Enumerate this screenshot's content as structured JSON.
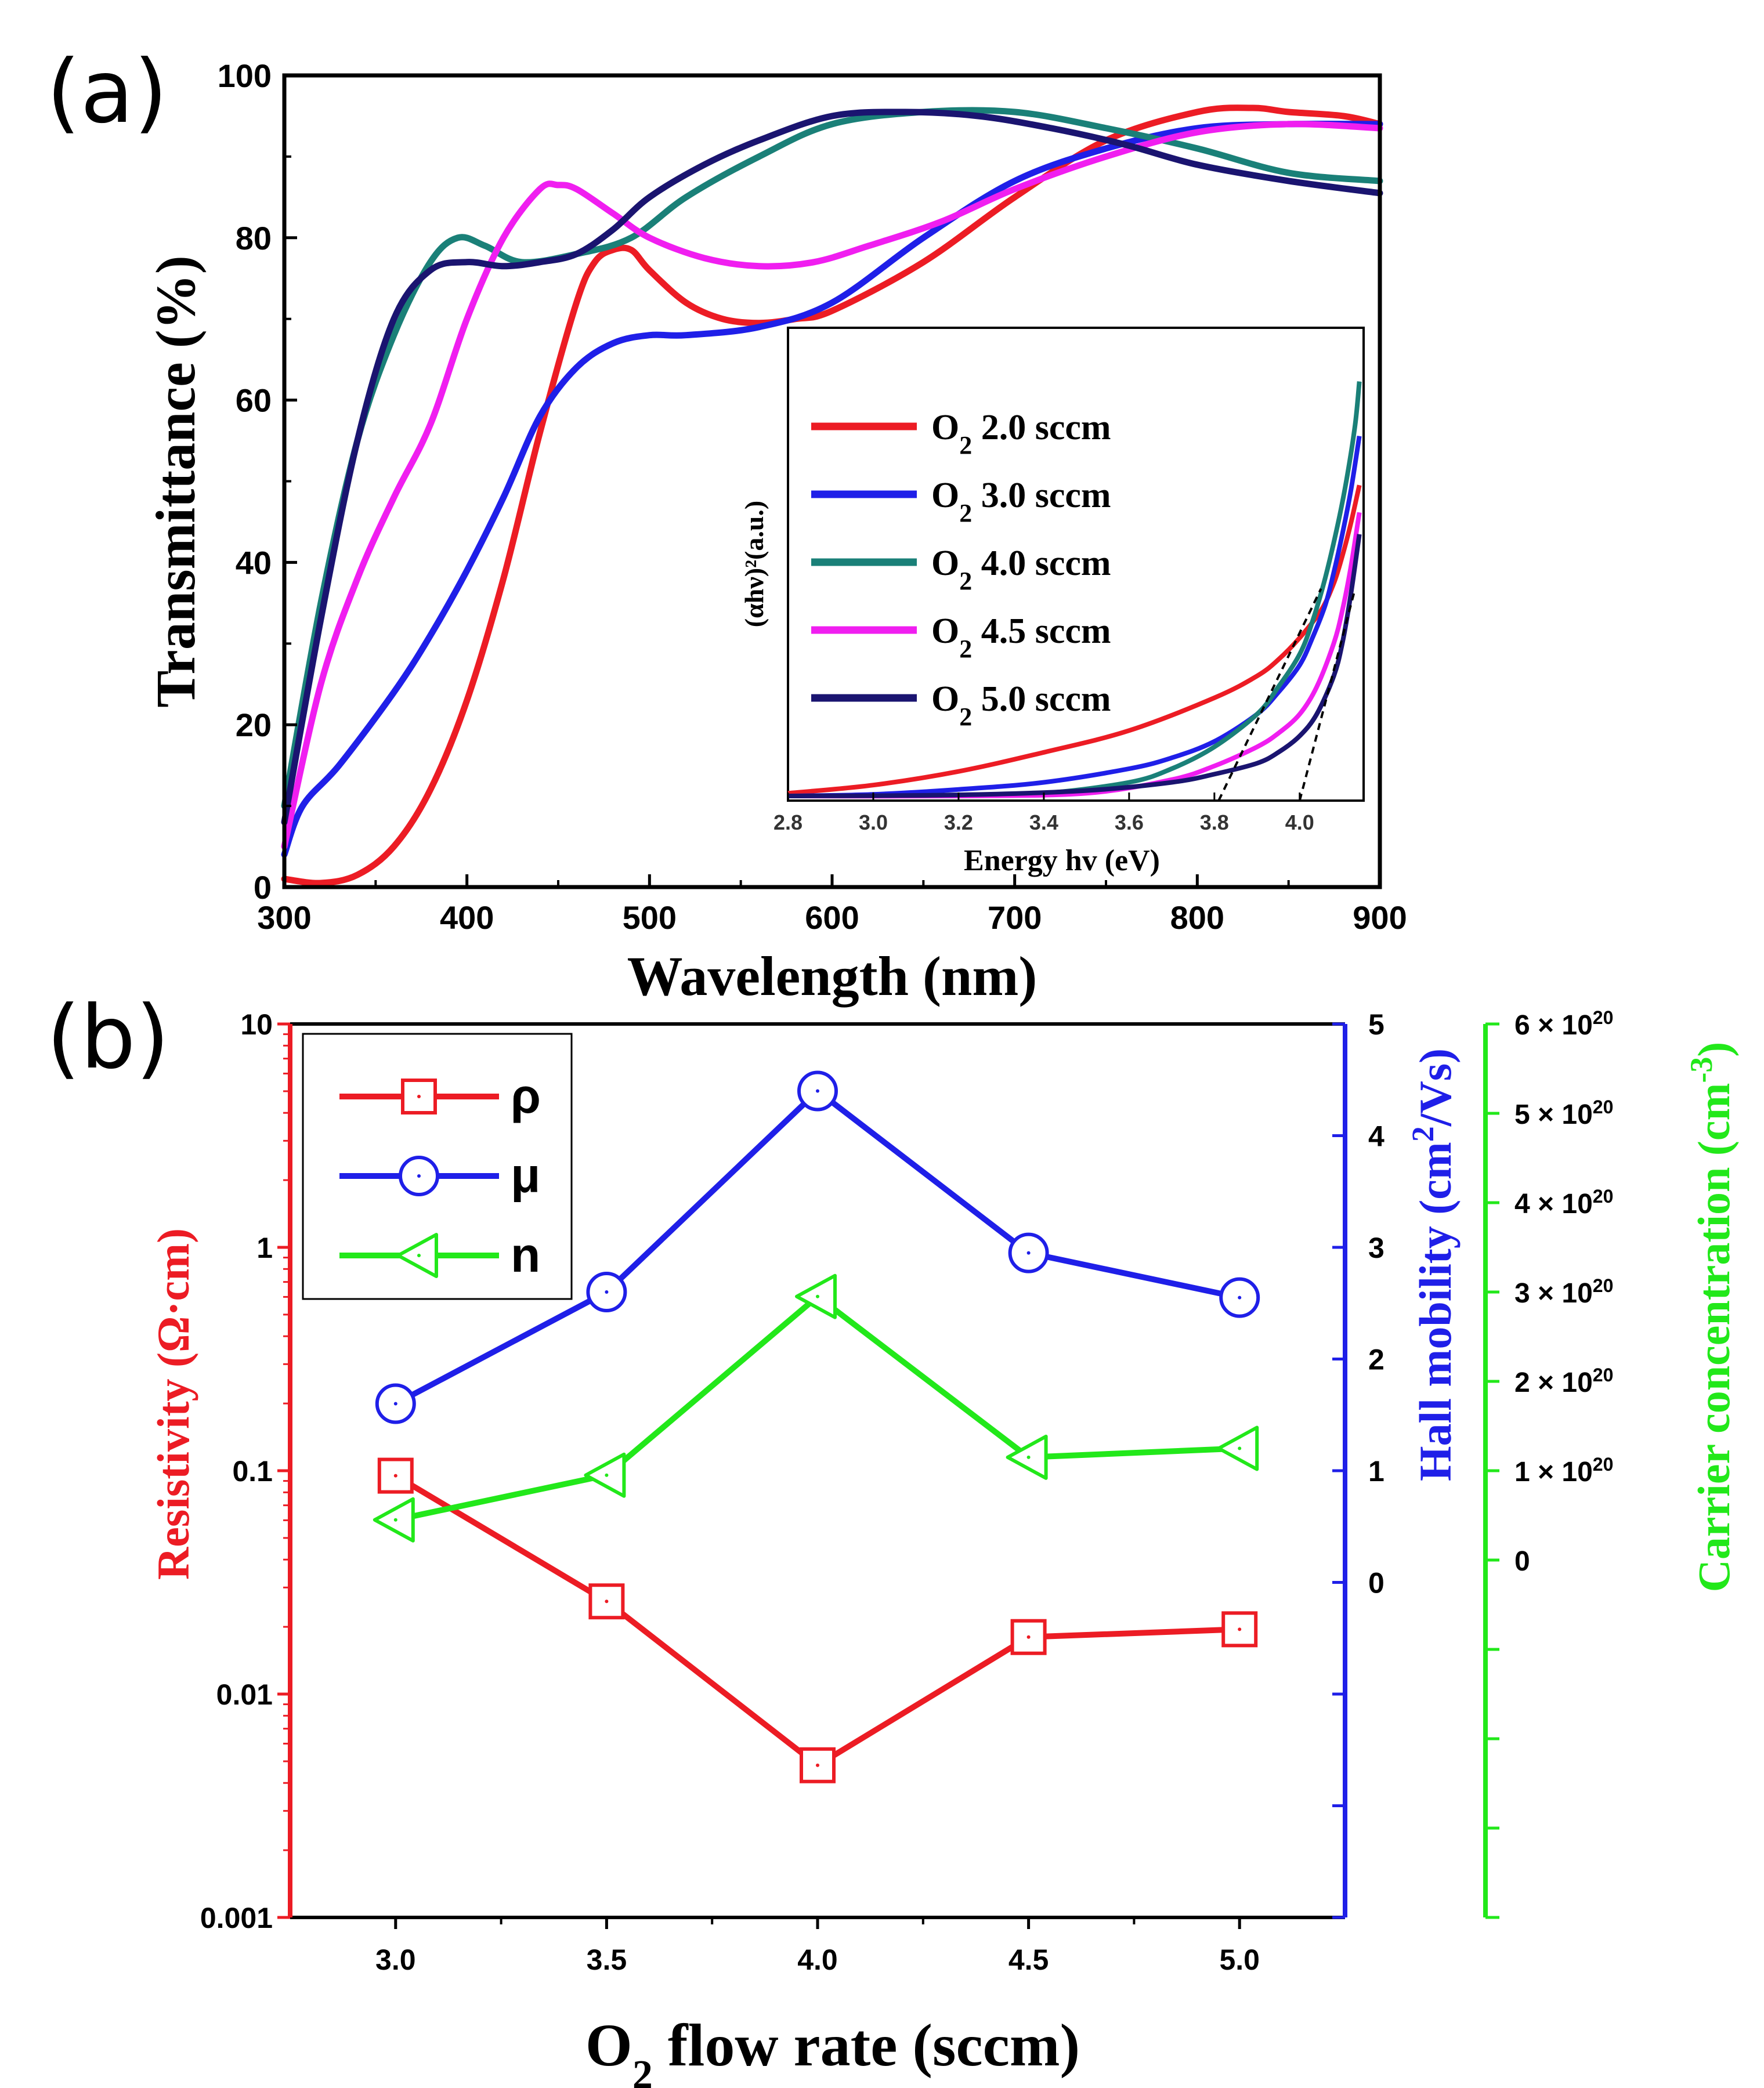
{
  "colors": {
    "red": "#ec1c24",
    "blue": "#1f1fe8",
    "teal": "#1a8078",
    "magenta": "#f01ef0",
    "navy": "#1a1470",
    "green": "#22e81a",
    "black": "#000000"
  },
  "chart_data": [
    {
      "id": "panel-a",
      "panel_label": "(a)",
      "type": "line",
      "xlabel": "Wavelength (nm)",
      "ylabel": "Transmittance (%)",
      "xlim": [
        300,
        900
      ],
      "ylim": [
        0,
        100
      ],
      "xticks": [
        "300",
        "400",
        "500",
        "600",
        "700",
        "800",
        "900"
      ],
      "yticks": [
        "0",
        "20",
        "40",
        "60",
        "80",
        "100"
      ],
      "series": [
        {
          "name": "O2 2.0 sccm",
          "color": "#ec1c24",
          "x": [
            300,
            320,
            340,
            360,
            380,
            400,
            420,
            440,
            460,
            470,
            480,
            490,
            500,
            520,
            540,
            560,
            580,
            600,
            650,
            700,
            750,
            800,
            830,
            850,
            880,
            900
          ],
          "y": [
            1,
            0.5,
            1.5,
            5,
            12,
            23,
            38,
            56,
            72,
            77,
            78.5,
            78.5,
            76,
            72,
            70,
            69.5,
            70,
            71,
            77,
            85,
            92,
            95.5,
            96,
            95.5,
            95,
            94
          ]
        },
        {
          "name": "O2 3.0 sccm",
          "color": "#1f1fe8",
          "x": [
            300,
            310,
            330,
            360,
            380,
            400,
            420,
            440,
            460,
            480,
            500,
            520,
            560,
            600,
            650,
            700,
            750,
            800,
            850,
            900
          ],
          "y": [
            4,
            10,
            15,
            24,
            31,
            39,
            48,
            58,
            64,
            67,
            68,
            68,
            69,
            72,
            80,
            87,
            91,
            93.5,
            94,
            94
          ]
        },
        {
          "name": "O2 4.0 sccm",
          "color": "#1a8078",
          "x": [
            300,
            320,
            340,
            360,
            380,
            395,
            410,
            430,
            460,
            490,
            520,
            560,
            600,
            650,
            700,
            750,
            800,
            850,
            900
          ],
          "y": [
            10,
            35,
            55,
            68,
            77,
            80,
            79,
            77,
            78,
            80,
            85,
            90,
            94,
            95.5,
            95.5,
            93.5,
            91,
            88,
            87
          ]
        },
        {
          "name": "O2 4.5 sccm",
          "color": "#f01ef0",
          "x": [
            300,
            320,
            340,
            360,
            380,
            400,
            420,
            440,
            450,
            460,
            480,
            500,
            530,
            560,
            590,
            620,
            660,
            700,
            750,
            800,
            850,
            900
          ],
          "y": [
            5,
            25,
            38,
            48,
            57,
            70,
            80,
            86,
            86.5,
            86,
            83,
            80,
            77.5,
            76.5,
            77,
            79,
            82,
            86,
            90,
            93,
            94,
            93.5
          ]
        },
        {
          "name": "O2 5.0 sccm",
          "color": "#1a1470",
          "x": [
            300,
            320,
            340,
            360,
            380,
            400,
            420,
            440,
            460,
            480,
            500,
            530,
            560,
            600,
            640,
            680,
            720,
            760,
            800,
            850,
            900
          ],
          "y": [
            8,
            33,
            55,
            70,
            76,
            77,
            76.5,
            77,
            78,
            81,
            85,
            89,
            92,
            95,
            95.5,
            95,
            93.5,
            91.5,
            89,
            87,
            85.5
          ]
        }
      ],
      "inset": {
        "xlabel": "Energy hv (eV)",
        "ylabel": "(αhν)²(a.u.)",
        "xlim": [
          2.8,
          4.15
        ],
        "xticks": [
          "2.8",
          "3.0",
          "3.2",
          "3.4",
          "3.6",
          "3.8",
          "4.0"
        ],
        "legend": [
          {
            "prefix": "O",
            "sub": "2",
            "text": " 2.0 sccm",
            "color": "#ec1c24"
          },
          {
            "prefix": "O",
            "sub": "2",
            "text": " 3.0 sccm",
            "color": "#1f1fe8"
          },
          {
            "prefix": "O",
            "sub": "2",
            "text": " 4.0 sccm",
            "color": "#1a8078"
          },
          {
            "prefix": "O",
            "sub": "2",
            "text": " 4.5 sccm",
            "color": "#f01ef0"
          },
          {
            "prefix": "O",
            "sub": "2",
            "text": " 5.0 sccm",
            "color": "#1a1470"
          }
        ],
        "curves": [
          {
            "name": "2.0",
            "color": "#ec1c24",
            "x": [
              2.8,
              3.0,
              3.2,
              3.4,
              3.6,
              3.8,
              3.9,
              3.95,
              4.0,
              4.05,
              4.08,
              4.1,
              4.12,
              4.14
            ],
            "y": [
              0.5,
              2,
              4.5,
              8,
              12,
              18,
              22,
              25,
              29,
              34,
              39,
              44,
              50,
              57
            ]
          },
          {
            "name": "3.0",
            "color": "#1f1fe8",
            "x": [
              2.8,
              3.0,
              3.2,
              3.4,
              3.6,
              3.7,
              3.8,
              3.9,
              3.95,
              4.0,
              4.03,
              4.06,
              4.08,
              4.1,
              4.12,
              4.14
            ],
            "y": [
              0,
              0.3,
              1.2,
              2.5,
              5,
              7,
              10,
              15,
              19,
              24,
              29,
              35,
              41,
              48,
              56,
              66
            ]
          },
          {
            "name": "4.0",
            "color": "#1a8078",
            "x": [
              2.8,
              3.0,
              3.2,
              3.4,
              3.6,
              3.7,
              3.8,
              3.9,
              3.95,
              4.0,
              4.03,
              4.06,
              4.09,
              4.11,
              4.13,
              4.14
            ],
            "y": [
              0,
              0,
              0.2,
              0.5,
              2.5,
              5,
              9,
              15,
              20,
              26,
              32,
              40,
              50,
              58,
              68,
              76
            ]
          },
          {
            "name": "4.5",
            "color": "#f01ef0",
            "x": [
              2.8,
              3.2,
              3.5,
              3.7,
              3.8,
              3.9,
              3.95,
              4.0,
              4.04,
              4.08,
              4.1,
              4.12,
              4.14
            ],
            "y": [
              0,
              0,
              0.5,
              3,
              5.5,
              9,
              11.5,
              15,
              20,
              28,
              34,
              42,
              52
            ]
          },
          {
            "name": "5.0",
            "color": "#1a1470",
            "x": [
              2.8,
              3.2,
              3.5,
              3.7,
              3.8,
              3.9,
              3.95,
              4.0,
              4.04,
              4.08,
              4.1,
              4.12,
              4.14
            ],
            "y": [
              0,
              0.2,
              1,
              2.5,
              4,
              6,
              8,
              11,
              15,
              22,
              28,
              37,
              48
            ]
          }
        ],
        "tangents": [
          {
            "x1": 3.81,
            "x2": 4.05
          },
          {
            "x1": 4.0,
            "x2": 4.13
          }
        ]
      }
    },
    {
      "id": "panel-b",
      "panel_label": "(b)",
      "type": "line",
      "xlabel_prefix": "O",
      "xlabel_sub": "2",
      "xlabel_rest": " flow rate (sccm)",
      "xlim": [
        2.75,
        5.25
      ],
      "xticks": [
        "3.0",
        "3.5",
        "4.0",
        "4.5",
        "5.0"
      ],
      "x": [
        3.0,
        3.5,
        4.0,
        4.5,
        5.0
      ],
      "left_axis": {
        "label_main": "Resistivity ",
        "label_unit": "(Ω·cm)",
        "scale": "log",
        "ylim": [
          0.001,
          10
        ],
        "yticks": [
          "0.001",
          "0.01",
          "0.1",
          "1",
          "10"
        ]
      },
      "mid_axis": {
        "label_a": "Hall mobility (cm",
        "label_sup": "2",
        "label_b": "/Vs)",
        "ylim": [
          -3,
          5
        ],
        "yticks": [
          "0",
          "1",
          "2",
          "3",
          "4",
          "5"
        ]
      },
      "right_axis": {
        "label_a": "Carrier concentration (cm",
        "label_sup": "-3",
        "label_b": ")",
        "ylim": [
          -4,
          6
        ],
        "mult": "× 10",
        "exp": "20",
        "yticks": [
          "0",
          "1",
          "2",
          "3",
          "4",
          "5",
          "6"
        ]
      },
      "series": [
        {
          "name": "ρ",
          "symbol": "square",
          "color": "#ec1c24",
          "axis": "left",
          "values": [
            0.095,
            0.026,
            0.0048,
            0.018,
            0.0195
          ]
        },
        {
          "name": "μ",
          "symbol": "circle",
          "color": "#1f1fe8",
          "axis": "mid",
          "values": [
            1.6,
            2.6,
            4.4,
            2.95,
            2.55
          ]
        },
        {
          "name": "n",
          "symbol": "triangle",
          "color": "#22e81a",
          "axis": "right",
          "values": [
            0.45,
            0.95,
            2.95,
            1.15,
            1.25
          ]
        }
      ]
    }
  ]
}
